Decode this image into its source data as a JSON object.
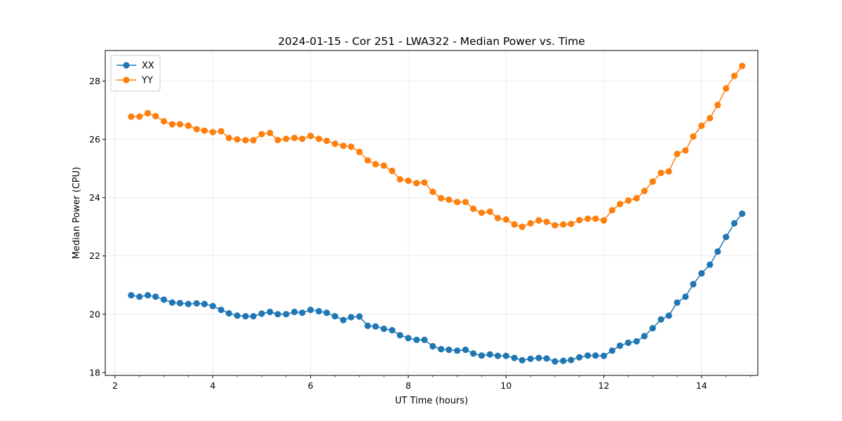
{
  "chart_data": {
    "type": "line",
    "title": "2024-01-15 - Cor 251 - LWA322 - Median Power vs. Time",
    "xlabel": "UT Time (hours)",
    "ylabel": "Median Power (CPU)",
    "xlim": [
      1.8,
      15.15
    ],
    "ylim": [
      17.9,
      29.05
    ],
    "xticks": [
      2,
      4,
      6,
      8,
      10,
      12,
      14
    ],
    "yticks": [
      18,
      20,
      22,
      24,
      26,
      28
    ],
    "xtick_labels": [
      "2",
      "4",
      "6",
      "8",
      "10",
      "12",
      "14"
    ],
    "ytick_labels": [
      "18",
      "20",
      "22",
      "24",
      "26",
      "28"
    ],
    "grid": true,
    "legend_position": "top-left",
    "x": [
      2.33,
      2.5,
      2.67,
      2.83,
      3.0,
      3.17,
      3.33,
      3.5,
      3.67,
      3.83,
      4.0,
      4.17,
      4.33,
      4.5,
      4.67,
      4.83,
      5.0,
      5.17,
      5.33,
      5.5,
      5.67,
      5.83,
      6.0,
      6.17,
      6.33,
      6.5,
      6.67,
      6.83,
      7.0,
      7.17,
      7.33,
      7.5,
      7.67,
      7.83,
      8.0,
      8.17,
      8.33,
      8.5,
      8.67,
      8.83,
      9.0,
      9.17,
      9.33,
      9.5,
      9.67,
      9.83,
      10.0,
      10.17,
      10.33,
      10.5,
      10.67,
      10.83,
      11.0,
      11.17,
      11.33,
      11.5,
      11.67,
      11.83,
      12.0,
      12.17,
      12.33,
      12.5,
      12.67,
      12.83,
      13.0,
      13.17,
      13.33,
      13.5,
      13.67,
      13.83,
      14.0,
      14.17,
      14.33,
      14.5,
      14.67,
      14.83
    ],
    "series": [
      {
        "name": "XX",
        "color": "#1f77b4",
        "values": [
          20.65,
          20.6,
          20.65,
          20.6,
          20.5,
          20.4,
          20.38,
          20.35,
          20.37,
          20.35,
          20.28,
          20.15,
          20.03,
          19.95,
          19.93,
          19.93,
          20.02,
          20.08,
          20.0,
          20.0,
          20.08,
          20.05,
          20.15,
          20.1,
          20.05,
          19.93,
          19.8,
          19.9,
          19.92,
          19.6,
          19.58,
          19.5,
          19.45,
          19.28,
          19.18,
          19.12,
          19.12,
          18.9,
          18.8,
          18.78,
          18.75,
          18.78,
          18.65,
          18.58,
          18.62,
          18.57,
          18.57,
          18.5,
          18.42,
          18.47,
          18.5,
          18.48,
          18.38,
          18.4,
          18.43,
          18.52,
          18.58,
          18.58,
          18.57,
          18.75,
          18.92,
          19.02,
          19.07,
          19.25,
          19.52,
          19.82,
          19.95,
          20.4,
          20.6,
          21.03,
          21.4,
          21.7,
          22.15,
          22.65,
          23.12,
          23.45
        ]
      },
      {
        "name": "YY",
        "color": "#ff7f0e",
        "values": [
          26.78,
          26.78,
          26.9,
          26.8,
          26.62,
          26.52,
          26.52,
          26.47,
          26.35,
          26.3,
          26.25,
          26.28,
          26.05,
          26.0,
          25.97,
          25.97,
          26.18,
          26.22,
          25.98,
          26.02,
          26.05,
          26.02,
          26.12,
          26.02,
          25.95,
          25.85,
          25.78,
          25.75,
          25.57,
          25.28,
          25.15,
          25.1,
          24.92,
          24.63,
          24.58,
          24.5,
          24.52,
          24.2,
          23.98,
          23.93,
          23.85,
          23.85,
          23.62,
          23.48,
          23.52,
          23.3,
          23.25,
          23.08,
          23.0,
          23.12,
          23.22,
          23.17,
          23.05,
          23.08,
          23.1,
          23.23,
          23.28,
          23.28,
          23.22,
          23.57,
          23.78,
          23.9,
          23.98,
          24.23,
          24.55,
          24.85,
          24.9,
          25.5,
          25.62,
          26.1,
          26.47,
          26.73,
          27.18,
          27.75,
          28.18,
          28.52
        ]
      }
    ]
  }
}
